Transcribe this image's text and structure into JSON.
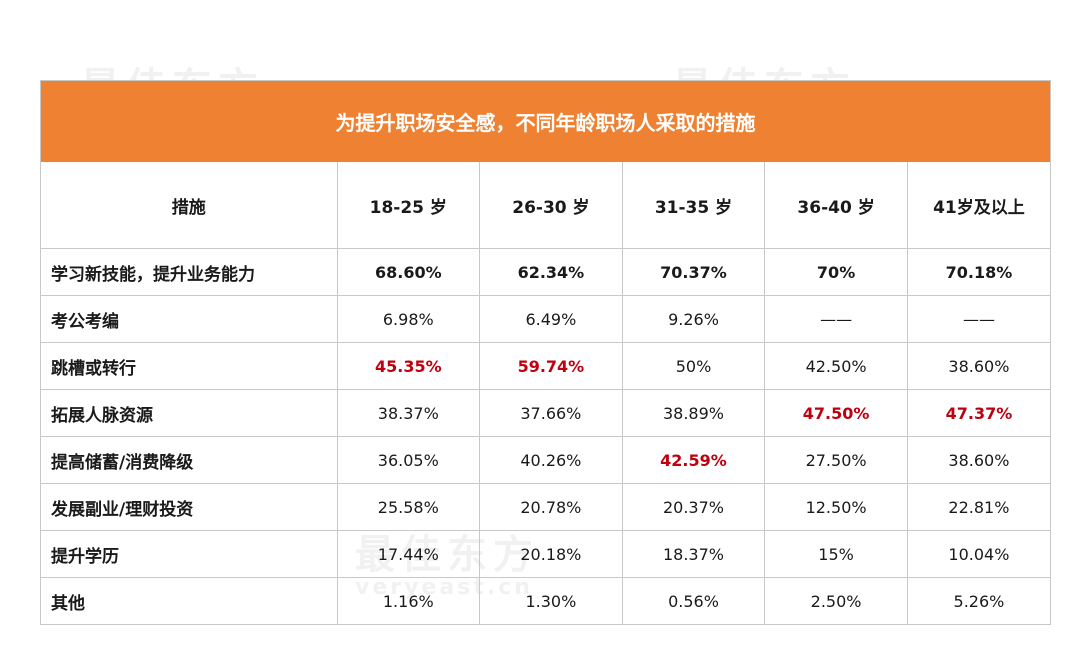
{
  "watermark": {
    "brand_cn": "最佳东方",
    "brand_url": "veryeast.cn"
  },
  "chart_data": {
    "type": "table",
    "title": "为提升职场安全感，不同年龄职场人采取的措施",
    "columns": [
      "措施",
      "18-25 岁",
      "26-30 岁",
      "31-35 岁",
      "36-40 岁",
      "41岁及以上"
    ],
    "rows": [
      {
        "measure": "学习新技能，提升业务能力",
        "values": [
          "68.60%",
          "62.34%",
          "70.37%",
          "70%",
          "70.18%"
        ],
        "highlight": [
          false,
          false,
          false,
          false,
          false
        ]
      },
      {
        "measure": "考公考编",
        "values": [
          "6.98%",
          "6.49%",
          "9.26%",
          "——",
          "——"
        ],
        "highlight": [
          false,
          false,
          false,
          false,
          false
        ]
      },
      {
        "measure": "跳槽或转行",
        "values": [
          "45.35%",
          "59.74%",
          "50%",
          "42.50%",
          "38.60%"
        ],
        "highlight": [
          true,
          true,
          false,
          false,
          false
        ]
      },
      {
        "measure": "拓展人脉资源",
        "values": [
          "38.37%",
          "37.66%",
          "38.89%",
          "47.50%",
          "47.37%"
        ],
        "highlight": [
          false,
          false,
          false,
          true,
          true
        ]
      },
      {
        "measure": "提高储蓄/消费降级",
        "values": [
          "36.05%",
          "40.26%",
          "42.59%",
          "27.50%",
          "38.60%"
        ],
        "highlight": [
          false,
          false,
          true,
          false,
          false
        ]
      },
      {
        "measure": "发展副业/理财投资",
        "values": [
          "25.58%",
          "20.78%",
          "20.37%",
          "12.50%",
          "22.81%"
        ],
        "highlight": [
          false,
          false,
          false,
          false,
          false
        ]
      },
      {
        "measure": "提升学历",
        "values": [
          "17.44%",
          "20.18%",
          "18.37%",
          "15%",
          "10.04%"
        ],
        "highlight": [
          false,
          false,
          false,
          false,
          false
        ]
      },
      {
        "measure": "其他",
        "values": [
          "1.16%",
          "1.30%",
          "0.56%",
          "2.50%",
          "5.26%"
        ],
        "highlight": [
          false,
          false,
          false,
          false,
          false
        ]
      }
    ],
    "colors": {
      "header_bg": "#ee8232",
      "highlight_text": "#c0000e"
    }
  }
}
